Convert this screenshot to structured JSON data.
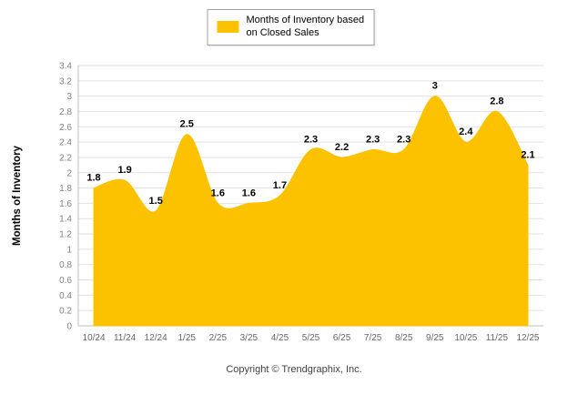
{
  "legend": {
    "line1": "Months of Inventory based",
    "line2": "on Closed Sales"
  },
  "footer": {
    "text": "Copyright © Trendgraphix, Inc."
  },
  "colors": {
    "area": "#FCC200",
    "grid": "#E2E2E2",
    "axis_line": "#BDBDBD",
    "axis_text": "#7F7F7F",
    "data_label": "#000000"
  },
  "chart_data": {
    "type": "area",
    "title": "",
    "xlabel": "",
    "ylabel": "Months of Inventory",
    "legend_label": "Months of Inventory based on Closed Sales",
    "legend_position": "top",
    "grid": true,
    "ylim": [
      0,
      3.4
    ],
    "ytick_step": 0.2,
    "categories": [
      "10/24",
      "11/24",
      "12/24",
      "1/25",
      "2/25",
      "3/25",
      "4/25",
      "5/25",
      "6/25",
      "7/25",
      "8/25",
      "9/25",
      "10/25",
      "11/25",
      "12/25"
    ],
    "values": [
      1.8,
      1.9,
      1.5,
      2.5,
      1.6,
      1.6,
      1.7,
      2.3,
      2.2,
      2.3,
      2.3,
      3,
      2.4,
      2.8,
      2.1
    ],
    "point_labels": [
      "1.8",
      "1.9",
      "1.5",
      "2.5",
      "1.6",
      "1.6",
      "1.7",
      "2.3",
      "2.2",
      "2.3",
      "2.3",
      "3",
      "2.4",
      "2.8",
      "2.1"
    ]
  }
}
